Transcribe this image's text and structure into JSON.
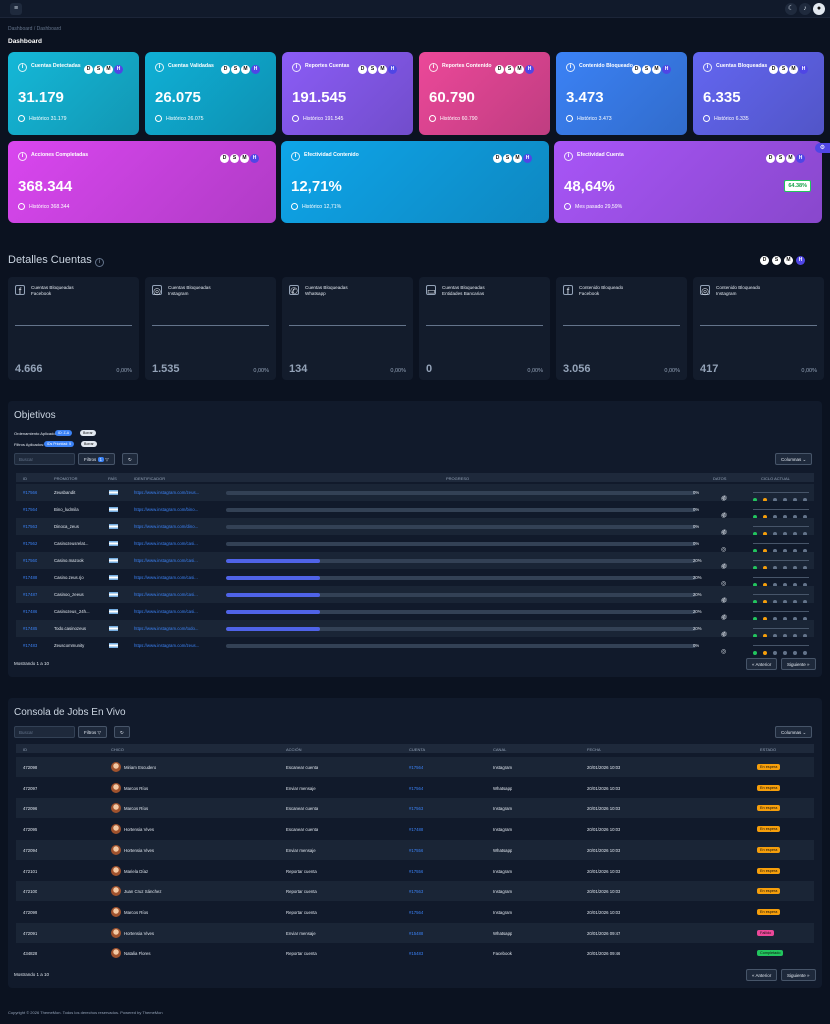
{
  "header": {
    "menu_icon": "menu-icon",
    "icons": [
      "moon-icon",
      "bell-icon",
      "user-avatar-icon"
    ]
  },
  "breadcrumb": "Dashboard  /  Dashboard",
  "page_title": "Dashboard",
  "pills": [
    "D",
    "S",
    "M",
    "H"
  ],
  "cards_top": [
    {
      "title": "Cuentas Detectadas",
      "value": "31.179",
      "sub": "Histórico 31.179",
      "color": "#14b8d8"
    },
    {
      "title": "Cuentas Validadas",
      "value": "26.075",
      "sub": "Histórico 26.075",
      "color": "#0fb0d6"
    },
    {
      "title": "Reportes Cuentas",
      "value": "191.545",
      "sub": "Histórico 191.545",
      "color": "#8b5cf6"
    },
    {
      "title": "Reportes Contenido",
      "value": "60.790",
      "sub": "Histórico 60.790",
      "color": "#ec4899"
    },
    {
      "title": "Contenido Bloqueado",
      "value": "3.473",
      "sub": "Histórico 3.473",
      "color": "#3b82f6"
    },
    {
      "title": "Cuentas Bloqueadas",
      "value": "6.335",
      "sub": "Histórico 6.335",
      "color": "#6366f1"
    }
  ],
  "cards_mid": [
    {
      "title": "Acciones Completadas",
      "value": "368.344",
      "sub": "Histórico 368.344",
      "color": "#d946ef"
    },
    {
      "title": "Efectividad Contenido",
      "value": "12,71%",
      "sub": "Histórico 12,71%",
      "color": "#0ea5e9"
    },
    {
      "title": "Efectividad Cuenta",
      "value": "48,64%",
      "sub": "Mes pasado 29,59%",
      "badge": "64.38%",
      "color": "#a855f7"
    }
  ],
  "detalles": {
    "title": "Detalles Cuentas",
    "cards": [
      {
        "icon": "facebook-icon",
        "glyph": "f",
        "title1": "Cuentas Bloqueadas",
        "title2": "Facebook",
        "value": "4.666",
        "pct": "0,00%"
      },
      {
        "icon": "instagram-icon",
        "glyph": "◎",
        "title1": "Cuentas Bloqueadas",
        "title2": "Instagram",
        "value": "1.535",
        "pct": "0,00%"
      },
      {
        "icon": "whatsapp-icon",
        "glyph": "✆",
        "title1": "Cuentas Bloqueadas",
        "title2": "Whatsapp",
        "value": "134",
        "pct": "0,00%"
      },
      {
        "icon": "wallet-icon",
        "glyph": "▭",
        "title1": "Cuentas Bloqueadas",
        "title2": "Entidades Bancarias",
        "value": "0",
        "pct": "0,00%"
      },
      {
        "icon": "facebook-icon",
        "glyph": "f",
        "title1": "Contenido Bloqueado",
        "title2": "Facebook",
        "value": "3.056",
        "pct": "0,00%"
      },
      {
        "icon": "instagram-icon",
        "glyph": "◎",
        "title1": "Contenido Bloqueado",
        "title2": "Instagram",
        "value": "417",
        "pct": "0,00%"
      }
    ]
  },
  "objetivos": {
    "title": "Objetivos",
    "ordenamiento_label": "Ordenamiento Aplicado:",
    "ordenamiento_chip": "ID: Z-A",
    "filtros_label": "Filtros Aplicados:",
    "filtros_chip": "IDs Prioridad: 5",
    "borrar": "Borrar",
    "search_placeholder": "Buscar",
    "filtros_btn": "Filtros",
    "filtros_count": "1",
    "columnas_btn": "Columnas",
    "columns": [
      "ID",
      "PROMOTOR",
      "PAÍS",
      "IDENTIFICADOR",
      "PROGRESO",
      "DATOS",
      "CICLO ACTUAL"
    ],
    "rows": [
      {
        "id": "#17566",
        "promotor": "Zeusbandit",
        "url": "https://www.instagram.com/zeus...",
        "progress": 0,
        "pct": "0%"
      },
      {
        "id": "#17564",
        "promotor": "Bino_ludmila",
        "url": "https://www.instagram.com/bino...",
        "progress": 0,
        "pct": "0%"
      },
      {
        "id": "#17563",
        "promotor": "Dinoca_zeus",
        "url": "https://www.instagram.com/dino...",
        "progress": 0,
        "pct": "0%"
      },
      {
        "id": "#17562",
        "promotor": "Casinozeusrelat...",
        "url": "https://www.instagram.com/casi...",
        "progress": 0,
        "pct": "0%"
      },
      {
        "id": "#17560",
        "promotor": "Casino.mazook",
        "url": "https://www.instagram.com/casi...",
        "progress": 20,
        "pct": "20%"
      },
      {
        "id": "#17488",
        "promotor": "Casino.zeus.rjo",
        "url": "https://www.instagram.com/casi...",
        "progress": 20,
        "pct": "20%"
      },
      {
        "id": "#17487",
        "promotor": "Casinoo_zeeus",
        "url": "https://www.instagram.com/casi...",
        "progress": 20,
        "pct": "20%"
      },
      {
        "id": "#17486",
        "promotor": "Casinozeus_24h...",
        "url": "https://www.instagram.com/casi...",
        "progress": 20,
        "pct": "20%"
      },
      {
        "id": "#17485",
        "promotor": "Todo.casinozeus",
        "url": "https://www.instagram.com/todo...",
        "progress": 20,
        "pct": "20%"
      },
      {
        "id": "#17483",
        "promotor": "Zeuscommunity",
        "url": "https://www.instagram.com/zeus...",
        "progress": 0,
        "pct": "0%"
      }
    ],
    "showing": "Mostrando 1 a 10",
    "prev": "« Anterior",
    "next": "Siguiente »"
  },
  "consola": {
    "title": "Consola de Jobs En Vivo",
    "search_placeholder": "Buscar",
    "filtros_btn": "Filtros",
    "columnas_btn": "Columnas",
    "columns": [
      "ID",
      "CHICO",
      "ACCIÓN",
      "CUENTA",
      "CANAL",
      "FECHA",
      "ESTADO"
    ],
    "rows": [
      {
        "id": "472098",
        "chico": "Miriam Escudero",
        "accion": "Escanear cuenta",
        "cuenta": "#17564",
        "canal": "Instagram",
        "fecha": "20/01/2026 10:03",
        "estado": "En espera",
        "color": "#f59e0b"
      },
      {
        "id": "472097",
        "chico": "Marcos Ríos",
        "accion": "Enviar mensaje",
        "cuenta": "#17564",
        "canal": "Whatsapp",
        "fecha": "20/01/2026 10:03",
        "estado": "En espera",
        "color": "#f59e0b"
      },
      {
        "id": "472096",
        "chico": "Marcos Ríos",
        "accion": "Escanear cuenta",
        "cuenta": "#17563",
        "canal": "Instagram",
        "fecha": "20/01/2026 10:03",
        "estado": "En espera",
        "color": "#f59e0b"
      },
      {
        "id": "472095",
        "chico": "Hortensia Vives",
        "accion": "Escanear cuenta",
        "cuenta": "#17488",
        "canal": "Instagram",
        "fecha": "20/01/2026 10:03",
        "estado": "En espera",
        "color": "#f59e0b"
      },
      {
        "id": "472094",
        "chico": "Hortensia Vives",
        "accion": "Enviar mensaje",
        "cuenta": "#17556",
        "canal": "Whatsapp",
        "fecha": "20/01/2026 10:03",
        "estado": "En espera",
        "color": "#f59e0b"
      },
      {
        "id": "472101",
        "chico": "Mariela Díaz",
        "accion": "Reportar cuenta",
        "cuenta": "#17556",
        "canal": "Instagram",
        "fecha": "20/01/2026 10:03",
        "estado": "En espera",
        "color": "#f59e0b"
      },
      {
        "id": "472100",
        "chico": "Juan Cruz Sánchez",
        "accion": "Reportar cuenta",
        "cuenta": "#17563",
        "canal": "Instagram",
        "fecha": "20/01/2026 10:03",
        "estado": "En espera",
        "color": "#f59e0b"
      },
      {
        "id": "472099",
        "chico": "Marcos Ríos",
        "accion": "Reportar cuenta",
        "cuenta": "#17564",
        "canal": "Instagram",
        "fecha": "20/01/2026 10:03",
        "estado": "En espera",
        "color": "#f59e0b"
      },
      {
        "id": "472091",
        "chico": "Hortensia Vives",
        "accion": "Enviar mensaje",
        "cuenta": "#15488",
        "canal": "Whatsapp",
        "fecha": "20/01/2026 09:47",
        "estado": "Fallido",
        "color": "#ec4899"
      },
      {
        "id": "434828",
        "chico": "Natalia Flores",
        "accion": "Reportar cuenta",
        "cuenta": "#15483",
        "canal": "Facebook",
        "fecha": "20/01/2026 09:46",
        "estado": "Completado",
        "color": "#22c55e"
      }
    ],
    "showing": "Mostrando 1 a 10",
    "prev": "« Anterior",
    "next": "Siguiente »"
  },
  "footer": "Copyright © 2026 ThemeMon. Todos los derechos reservados. Powered by ThemeMon"
}
